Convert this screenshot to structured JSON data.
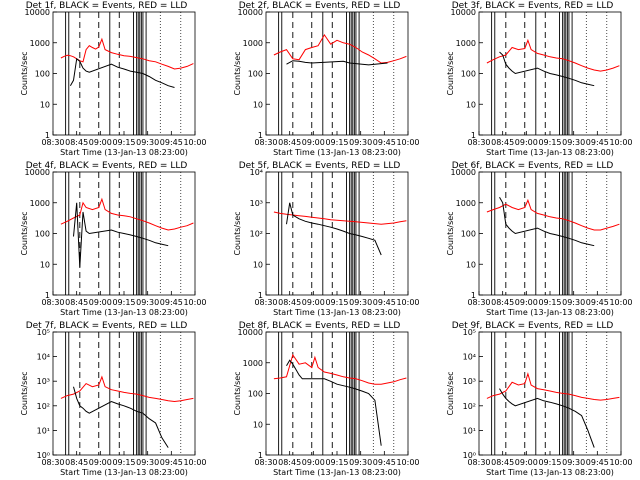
{
  "colors": {
    "events": "#000000",
    "lld": "#ff0000",
    "axis": "#000000"
  },
  "common": {
    "xlabel": "Start Time (13-Jan-13 08:23:00)",
    "ylabel": "Counts/sec",
    "x_ticks": [
      "08:30",
      "08:45",
      "09:00",
      "09:15",
      "09:30",
      "09:45",
      "10:00"
    ],
    "xlim_min": [
      7,
      97
    ]
  },
  "chart_data": [
    {
      "type": "line",
      "title": "Det 1f, BLACK = Events, RED = LLD",
      "ylim": [
        1,
        10000
      ],
      "yscale": "log",
      "ytick_values": [
        1,
        10,
        100,
        1000,
        10000
      ],
      "ytick_labels": [
        "1",
        "10",
        "100",
        "1000",
        "10000"
      ],
      "series": [
        {
          "x": [
            12,
            14,
            16,
            18,
            20,
            22,
            24,
            26,
            28,
            30,
            32,
            34,
            36,
            38,
            40,
            44,
            48,
            52,
            56,
            60,
            64,
            68,
            72,
            76,
            80,
            84,
            88,
            92,
            96
          ],
          "y": [
            320,
            360,
            390,
            380,
            350,
            300,
            260,
            240,
            600,
            800,
            700,
            620,
            720,
            1300,
            600,
            480,
            420,
            380,
            360,
            330,
            300,
            260,
            240,
            200,
            170,
            140,
            150,
            170,
            210
          ]
        },
        {
          "x": [
            18,
            20,
            22,
            24,
            26,
            28,
            30,
            44,
            48,
            52,
            56,
            60,
            64,
            68,
            72,
            76,
            80,
            84
          ],
          "y": [
            40,
            60,
            300,
            250,
            150,
            120,
            110,
            200,
            160,
            140,
            120,
            110,
            100,
            80,
            60,
            50,
            40,
            35
          ]
        }
      ]
    },
    {
      "type": "line",
      "title": "Det 2f, BLACK = Events, RED = LLD",
      "ylim": [
        1,
        10000
      ],
      "yscale": "log",
      "ytick_values": [
        1,
        10,
        100,
        1000,
        10000
      ],
      "ytick_labels": [
        "1",
        "10",
        "100",
        "1000",
        "10000"
      ],
      "series": [
        {
          "x": [
            12,
            16,
            20,
            24,
            28,
            32,
            36,
            40,
            44,
            48,
            52,
            56,
            60,
            64,
            68,
            72,
            76,
            80,
            84,
            88,
            92,
            96
          ],
          "y": [
            400,
            500,
            600,
            300,
            280,
            600,
            700,
            800,
            1800,
            900,
            1200,
            1000,
            900,
            700,
            500,
            400,
            300,
            220,
            230,
            260,
            300,
            360
          ]
        },
        {
          "x": [
            20,
            24,
            28,
            32,
            36,
            56,
            60,
            64,
            68,
            72,
            76,
            80,
            84
          ],
          "y": [
            200,
            260,
            250,
            230,
            220,
            250,
            220,
            210,
            200,
            190,
            200,
            210,
            220
          ]
        }
      ]
    },
    {
      "type": "line",
      "title": "Det 3f, BLACK = Events, RED = LLD",
      "ylim": [
        1,
        10000
      ],
      "yscale": "log",
      "ytick_values": [
        1,
        10,
        100,
        1000,
        10000
      ],
      "ytick_labels": [
        "1",
        "10",
        "100",
        "1000",
        "10000"
      ],
      "series": [
        {
          "x": [
            12,
            16,
            20,
            24,
            28,
            32,
            36,
            38,
            40,
            44,
            48,
            52,
            56,
            60,
            64,
            68,
            72,
            76,
            80,
            84,
            88,
            92,
            96
          ],
          "y": [
            220,
            280,
            350,
            400,
            700,
            600,
            650,
            1200,
            600,
            450,
            400,
            350,
            320,
            300,
            260,
            220,
            180,
            150,
            130,
            120,
            130,
            150,
            180
          ]
        },
        {
          "x": [
            20,
            22,
            24,
            26,
            28,
            30,
            44,
            48,
            52,
            56,
            60,
            64,
            68,
            72,
            76,
            80
          ],
          "y": [
            500,
            400,
            200,
            150,
            120,
            100,
            150,
            120,
            100,
            90,
            80,
            70,
            60,
            50,
            45,
            40
          ]
        }
      ]
    },
    {
      "type": "line",
      "title": "Det 4f, BLACK = Events, RED = LLD",
      "ylim": [
        1,
        10000
      ],
      "yscale": "log",
      "ytick_values": [
        1,
        10,
        100,
        1000,
        10000
      ],
      "ytick_labels": [
        "1",
        "10",
        "100",
        "1000",
        "10000"
      ],
      "series": [
        {
          "x": [
            12,
            16,
            20,
            24,
            26,
            28,
            32,
            36,
            38,
            40,
            44,
            48,
            52,
            56,
            60,
            64,
            68,
            72,
            76,
            80,
            84,
            88,
            92,
            96
          ],
          "y": [
            200,
            250,
            320,
            400,
            1000,
            700,
            600,
            700,
            1300,
            600,
            450,
            400,
            380,
            350,
            300,
            260,
            220,
            180,
            150,
            130,
            140,
            160,
            180,
            220
          ]
        },
        {
          "x": [
            20,
            22,
            24,
            26,
            28,
            30,
            44,
            48,
            52,
            56,
            60,
            64,
            68,
            72,
            76,
            80
          ],
          "y": [
            80,
            1000,
            8,
            500,
            120,
            100,
            130,
            110,
            100,
            90,
            80,
            70,
            60,
            50,
            45,
            40
          ]
        }
      ]
    },
    {
      "type": "line",
      "title": "Det 5f, BLACK = Events, RED = LLD",
      "ylim": [
        1,
        10000
      ],
      "yscale": "log",
      "ytick_values": [
        1,
        10,
        100,
        1000,
        10000
      ],
      "ytick_labels": [
        "1",
        "10",
        "10²",
        "10³",
        "10⁴"
      ],
      "series": [
        {
          "x": [
            12,
            16,
            20,
            24,
            28,
            32,
            36,
            40,
            44,
            48,
            52,
            56,
            60,
            64,
            68,
            72,
            76,
            80,
            84,
            88,
            92,
            96
          ],
          "y": [
            500,
            450,
            420,
            400,
            380,
            360,
            340,
            320,
            300,
            280,
            270,
            260,
            250,
            240,
            230,
            220,
            210,
            200,
            210,
            220,
            240,
            260
          ]
        },
        {
          "x": [
            20,
            22,
            24,
            28,
            32,
            36,
            40,
            44,
            48,
            52,
            56,
            60,
            64,
            68,
            72,
            76,
            80
          ],
          "y": [
            200,
            1000,
            400,
            300,
            250,
            220,
            200,
            180,
            160,
            140,
            120,
            100,
            90,
            80,
            70,
            60,
            20
          ]
        }
      ]
    },
    {
      "type": "line",
      "title": "Det 6f, BLACK = Events, RED = LLD",
      "ylim": [
        1,
        10000
      ],
      "yscale": "log",
      "ytick_values": [
        1,
        10,
        100,
        1000,
        10000
      ],
      "ytick_labels": [
        "1",
        "10",
        "100",
        "1000",
        "10000"
      ],
      "series": [
        {
          "x": [
            12,
            16,
            20,
            24,
            28,
            32,
            36,
            38,
            40,
            44,
            48,
            52,
            56,
            60,
            64,
            68,
            72,
            76,
            80,
            84,
            88,
            92,
            96
          ],
          "y": [
            500,
            600,
            700,
            900,
            700,
            600,
            700,
            1200,
            600,
            450,
            400,
            350,
            320,
            300,
            260,
            220,
            180,
            150,
            130,
            130,
            150,
            170,
            200
          ]
        },
        {
          "x": [
            20,
            22,
            24,
            26,
            28,
            30,
            44,
            48,
            52,
            56,
            60,
            64,
            68,
            72,
            76,
            80
          ],
          "y": [
            1500,
            1000,
            200,
            150,
            120,
            100,
            150,
            120,
            100,
            90,
            80,
            70,
            60,
            50,
            45,
            40
          ]
        }
      ]
    },
    {
      "type": "line",
      "title": "Det 7f, BLACK = Events, RED = LLD",
      "ylim": [
        1,
        100000
      ],
      "yscale": "log",
      "ytick_values": [
        1,
        10,
        100,
        1000,
        10000,
        100000
      ],
      "ytick_labels": [
        "10⁰",
        "10¹",
        "10²",
        "10³",
        "10⁴",
        "10⁵"
      ],
      "series": [
        {
          "x": [
            12,
            16,
            20,
            24,
            28,
            32,
            36,
            38,
            40,
            44,
            48,
            52,
            56,
            60,
            64,
            68,
            72,
            76,
            80,
            84,
            88,
            92,
            96
          ],
          "y": [
            200,
            260,
            300,
            400,
            800,
            600,
            700,
            1500,
            600,
            450,
            400,
            350,
            320,
            300,
            260,
            220,
            200,
            180,
            160,
            150,
            160,
            180,
            200
          ]
        },
        {
          "x": [
            20,
            22,
            24,
            26,
            28,
            30,
            44,
            48,
            52,
            56,
            60,
            64,
            68,
            72,
            76,
            80
          ],
          "y": [
            600,
            200,
            100,
            80,
            60,
            50,
            150,
            120,
            100,
            80,
            60,
            50,
            30,
            20,
            5,
            2
          ]
        }
      ]
    },
    {
      "type": "line",
      "title": "Det 8f, BLACK = Events, RED = LLD",
      "ylim": [
        1,
        10000
      ],
      "yscale": "log",
      "ytick_values": [
        1,
        10,
        100,
        1000,
        10000
      ],
      "ytick_labels": [
        "1",
        "10",
        "100",
        "1000",
        "10000"
      ],
      "series": [
        {
          "x": [
            12,
            16,
            20,
            24,
            28,
            32,
            36,
            38,
            40,
            44,
            48,
            52,
            56,
            60,
            64,
            68,
            72,
            76,
            80,
            84,
            88,
            92,
            96
          ],
          "y": [
            300,
            320,
            350,
            1800,
            900,
            1000,
            700,
            1500,
            700,
            500,
            450,
            400,
            350,
            320,
            300,
            260,
            220,
            200,
            200,
            220,
            240,
            280,
            320
          ]
        },
        {
          "x": [
            20,
            22,
            24,
            26,
            28,
            30,
            44,
            48,
            52,
            56,
            60,
            64,
            68,
            72,
            76,
            80
          ],
          "y": [
            800,
            1200,
            900,
            600,
            400,
            300,
            300,
            250,
            200,
            180,
            160,
            140,
            120,
            100,
            60,
            2
          ]
        }
      ]
    },
    {
      "type": "line",
      "title": "Det 9f, BLACK = Events, RED = LLD",
      "ylim": [
        1,
        100000
      ],
      "yscale": "log",
      "ytick_values": [
        1,
        10,
        100,
        1000,
        10000,
        100000
      ],
      "ytick_labels": [
        "10⁰",
        "10¹",
        "10²",
        "10³",
        "10⁴",
        "10⁵"
      ],
      "series": [
        {
          "x": [
            12,
            16,
            20,
            24,
            28,
            32,
            36,
            38,
            40,
            44,
            48,
            52,
            56,
            60,
            64,
            68,
            72,
            76,
            80,
            84,
            88,
            92,
            96
          ],
          "y": [
            200,
            260,
            300,
            400,
            900,
            700,
            800,
            2000,
            700,
            500,
            450,
            400,
            350,
            320,
            300,
            260,
            220,
            200,
            180,
            170,
            180,
            200,
            220
          ]
        },
        {
          "x": [
            20,
            22,
            24,
            26,
            28,
            30,
            44,
            48,
            52,
            56,
            60,
            64,
            68,
            72,
            76,
            80
          ],
          "y": [
            500,
            300,
            200,
            150,
            120,
            100,
            200,
            160,
            140,
            120,
            100,
            80,
            60,
            40,
            10,
            2
          ]
        }
      ]
    }
  ]
}
